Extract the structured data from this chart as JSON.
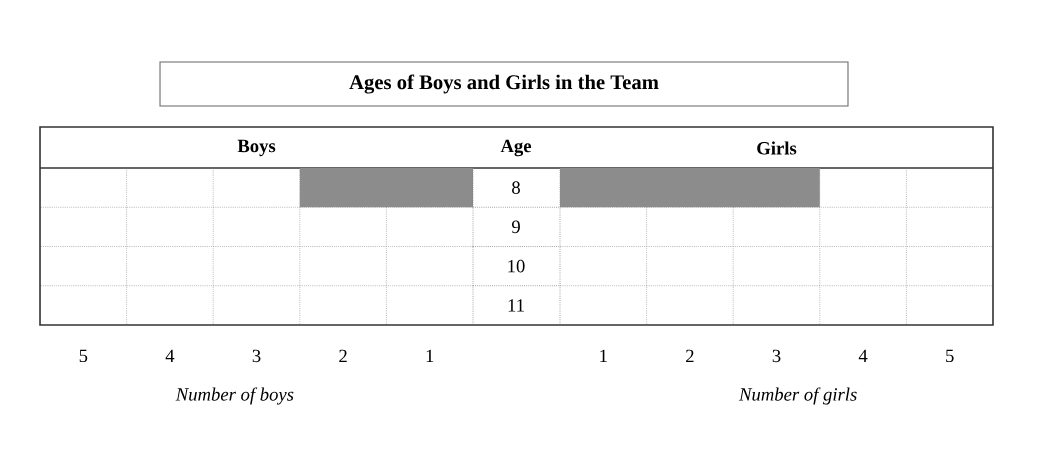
{
  "chart_data": [
    {
      "type": "bar",
      "orientation": "horizontal",
      "title": "Ages of Boys and Girls in the Team",
      "ylabel": "Age",
      "xlabel": "Number of boys",
      "categories": [
        "8",
        "9",
        "10",
        "11"
      ],
      "series": [
        {
          "name": "Boys",
          "color": "#8c8c8c",
          "values": [
            2,
            null,
            null,
            null
          ]
        }
      ],
      "xlim": [
        5,
        0
      ],
      "xticks": [
        {
          "value": 4.5,
          "label": "5"
        },
        {
          "value": 3.5,
          "label": "4"
        },
        {
          "value": 2.5,
          "label": "3"
        },
        {
          "value": 1.5,
          "label": "2"
        },
        {
          "value": 0.5,
          "label": "1"
        }
      ],
      "grid": true
    },
    {
      "type": "bar",
      "orientation": "horizontal",
      "xlabel": "Number of girls",
      "categories": [
        "8",
        "9",
        "10",
        "11"
      ],
      "tick_labels": "x",
      "series": [
        {
          "name": "Girls",
          "color": "#8c8c8c",
          "values": [
            3,
            null,
            null,
            null
          ]
        }
      ],
      "xlim": [
        0,
        5
      ],
      "xticks": [
        {
          "value": 0.5,
          "label": "1"
        },
        {
          "value": 1.5,
          "label": "2"
        },
        {
          "value": 2.5,
          "label": "3"
        },
        {
          "value": 3.5,
          "label": "4"
        },
        {
          "value": 4.5,
          "label": "5"
        }
      ],
      "grid": true
    }
  ]
}
